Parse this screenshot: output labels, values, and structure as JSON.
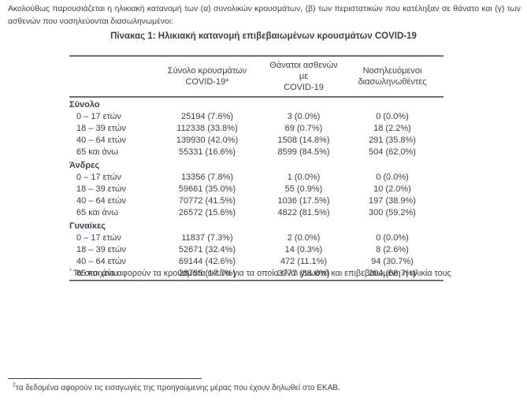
{
  "page": {
    "intro_text": "Ακολούθως παρουσιάζεται η ηλικιακή κατανομή των (α) συνολικών κρουσμάτων, (β) των περιστατικών που κατέληξαν σε θάνατο και (γ) των ασθενών που νοσηλεύονται διασωληνωμένοι:",
    "table_title": "Πίνακας 1: Ηλικιακή κατανομή επιβεβαιωμένων κρουσμάτων COVID-19"
  },
  "table": {
    "headers": [
      {
        "line1": "Σύνολο κρουσμάτων",
        "line2": "COVID-19*"
      },
      {
        "line1": "Θάνατοι ασθενών με",
        "line2": "COVID-19"
      },
      {
        "line1": "Νοσηλευόμενοι",
        "line2": "διασωληνωθέντες"
      }
    ],
    "sections": [
      {
        "label": "Σύνολο",
        "rows": [
          {
            "label": "0 – 17 ετών",
            "cases": "25194 (7.6%)",
            "deaths": "3 (0.0%)",
            "intubated": "0 (0.0%)"
          },
          {
            "label": "18 – 39 ετών",
            "cases": "112338 (33.8%)",
            "deaths": "69 (0.7%)",
            "intubated": "18 (2.2%)"
          },
          {
            "label": "40 – 64 ετών",
            "cases": "139930 (42.0%)",
            "deaths": "1508 (14.8%)",
            "intubated": "291 (35.8%)"
          },
          {
            "label": "65 και άνω",
            "cases": "55331 (16.6%)",
            "deaths": "8599 (84.5%)",
            "intubated": "504 (62.0%)"
          }
        ]
      },
      {
        "label": "Άνδρες",
        "rows": [
          {
            "label": "0 – 17 ετών",
            "cases": "13356 (7.8%)",
            "deaths": "1 (0.0%)",
            "intubated": "0 (0.0%)"
          },
          {
            "label": "18 – 39 ετών",
            "cases": "59661 (35.0%)",
            "deaths": "55 (0.9%)",
            "intubated": "10 (2.0%)"
          },
          {
            "label": "40 – 64 ετών",
            "cases": "70772 (41.5%)",
            "deaths": "1036 (17.5%)",
            "intubated": "197 (38.9%)"
          },
          {
            "label": "65 και άνω",
            "cases": "26572 (15.6%)",
            "deaths": "4822 (81.5%)",
            "intubated": "300 (59.2%)"
          }
        ]
      },
      {
        "label": "Γυναίκες",
        "rows": [
          {
            "label": "0 – 17 ετών",
            "cases": "11837 (7.3%)",
            "deaths": "2 (0.0%)",
            "intubated": "0 (0.0%)"
          },
          {
            "label": "18 – 39 ετών",
            "cases": "52671 (32.4%)",
            "deaths": "14 (0.3%)",
            "intubated": "8 (2.6%)"
          },
          {
            "label": "40 – 64 ετών",
            "cases": "69144 (42.6%)",
            "deaths": "472 (11.1%)",
            "intubated": "94 (30.7%)"
          },
          {
            "label": "65 και άνω",
            "cases": "28755 (17.7%)",
            "deaths": "3777 (88.6%)",
            "intubated": "204 (66.7%)"
          }
        ]
      }
    ]
  },
  "table_footnote": {
    "marker": "*",
    "text": "Τα στοιχεία αφορούν τα κρούσματα εκείνα για τα οποία είναι γνωστή και επιβεβαιωμένη η ηλικία τους"
  },
  "page_footnote": {
    "marker": "2",
    "text": "τα δεδομένα αφορούν τις εισαγωγές της προηγούμενης μέρας που έχουν δηλωθεί στο ΕΚΑΒ."
  },
  "colors": {
    "text": "#3e3e4c",
    "table_border": "#6f6f6f",
    "background": "#ffffff"
  }
}
